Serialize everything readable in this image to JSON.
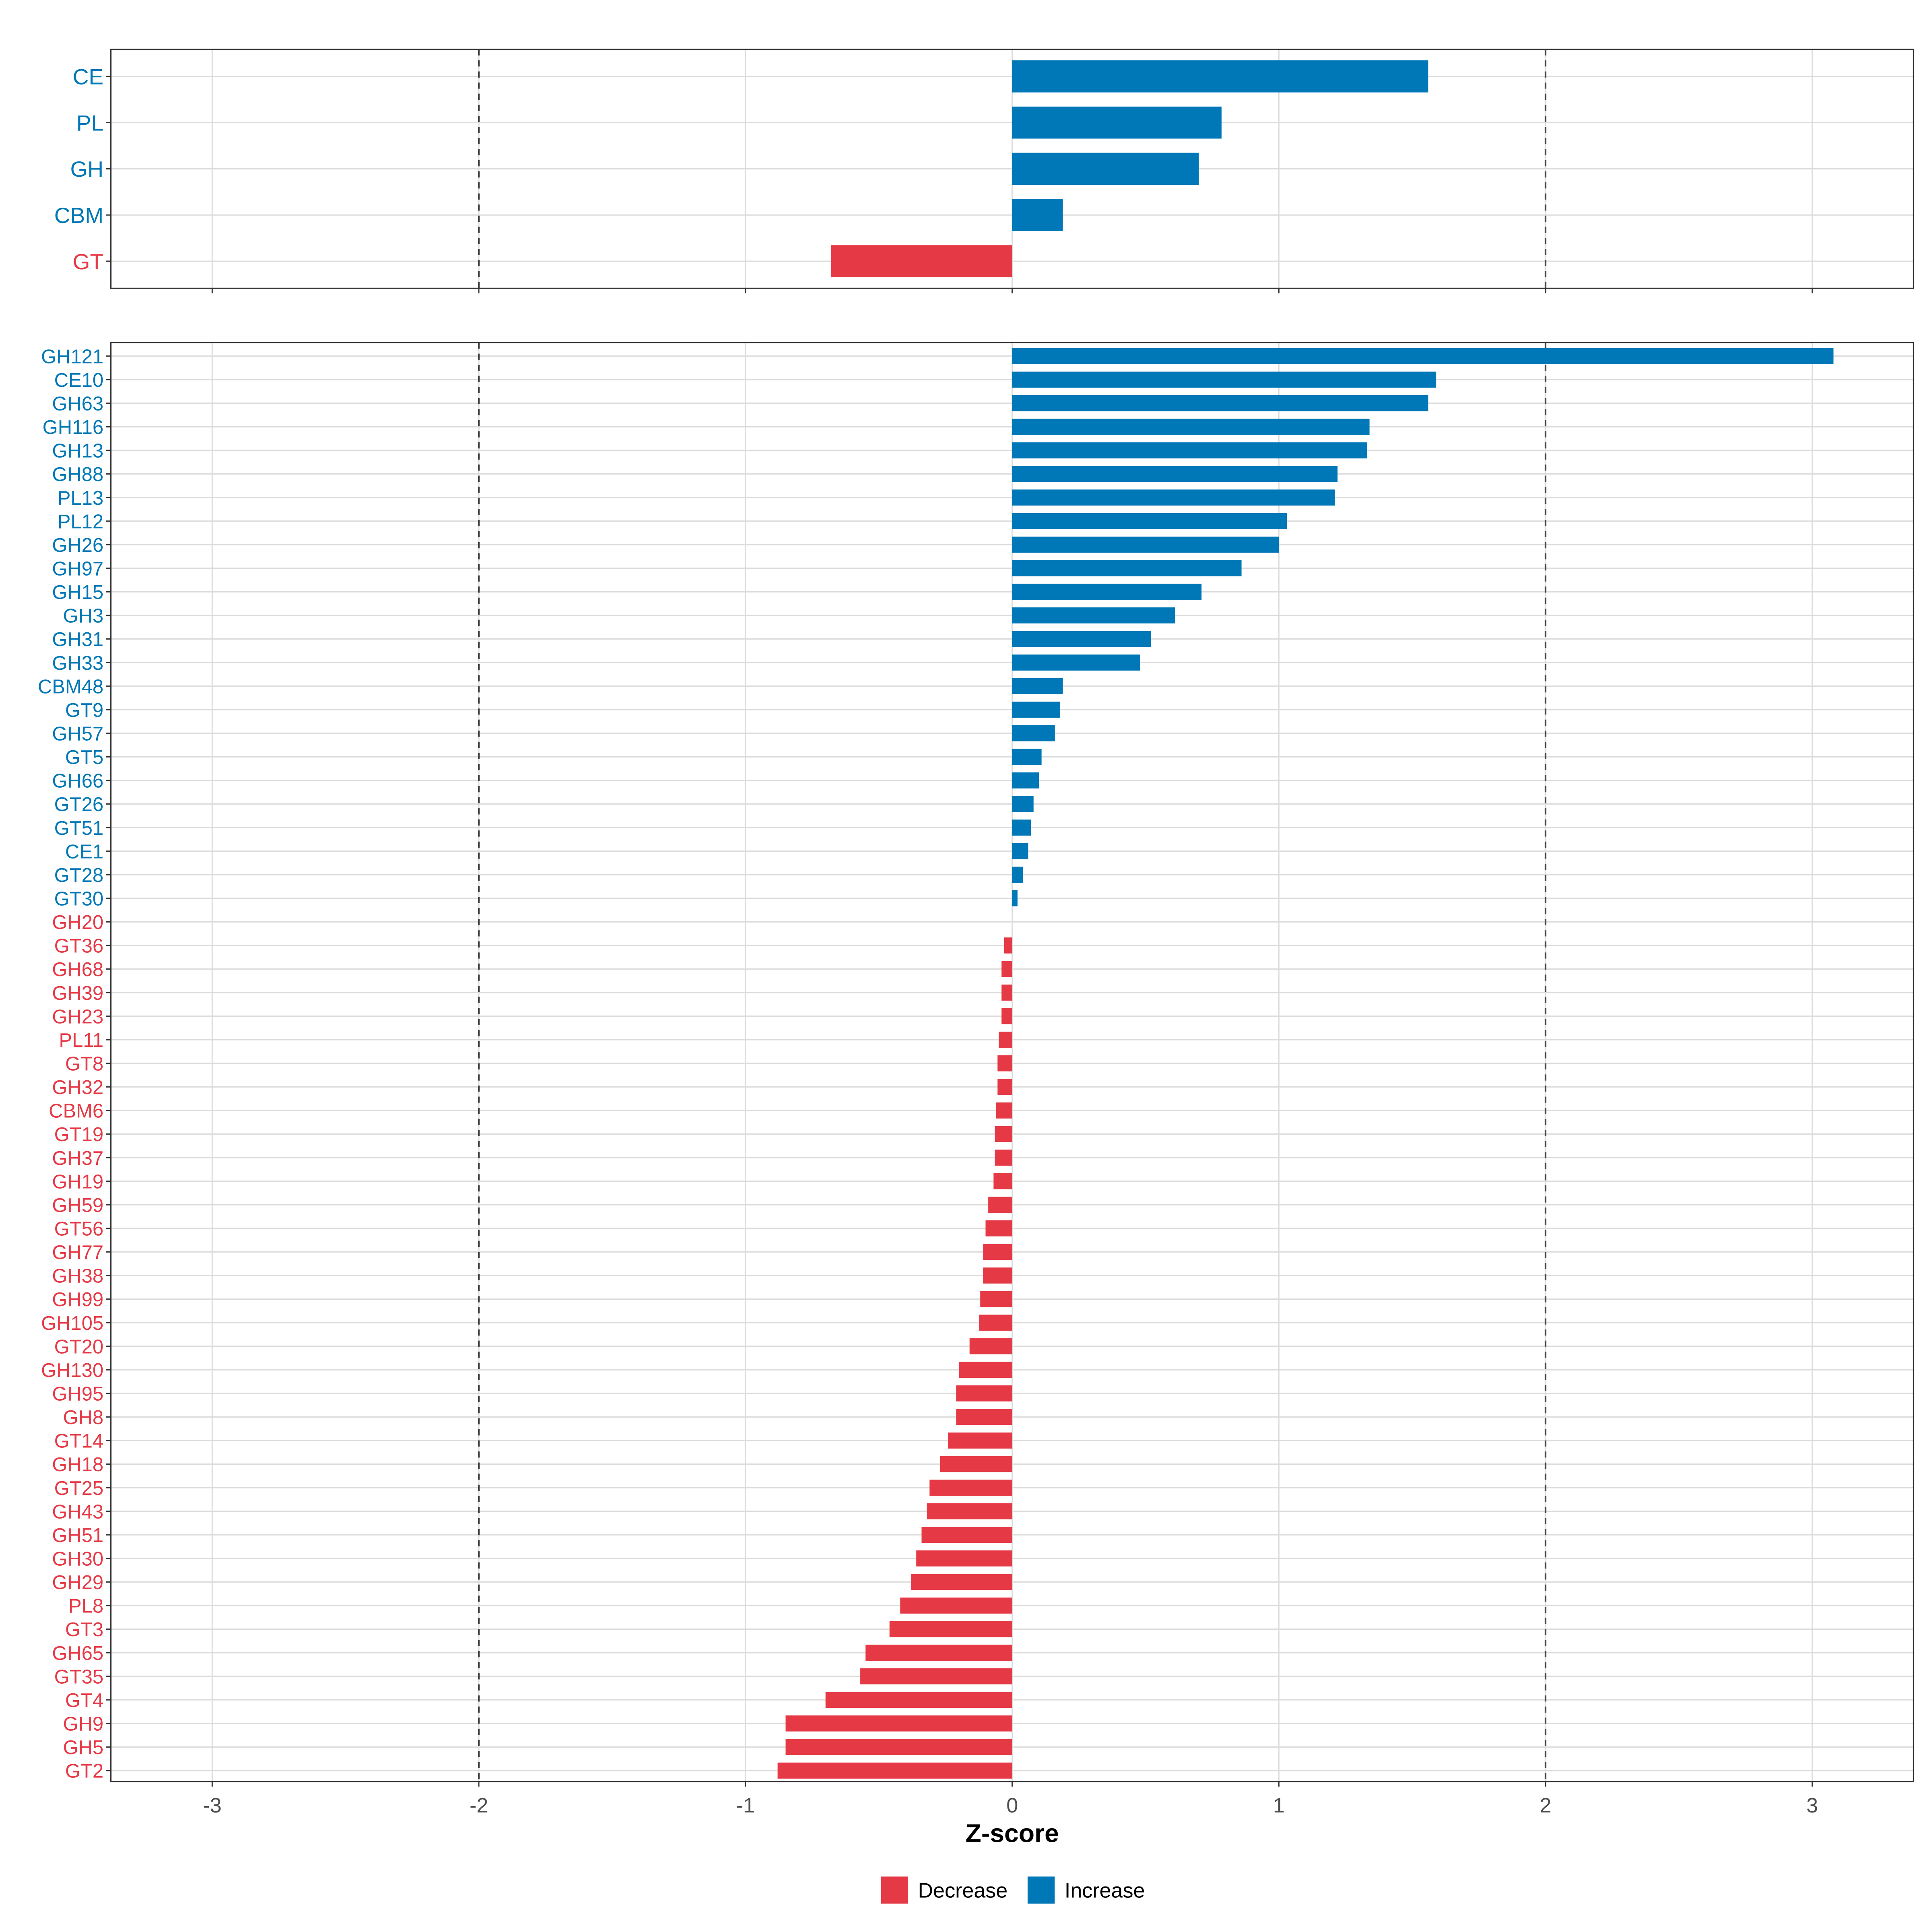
{
  "chart_data": [
    {
      "type": "bar",
      "orientation": "horizontal",
      "panel": "top",
      "categories": [
        "CE",
        "PL",
        "GH",
        "CBM",
        "GT"
      ],
      "values": [
        1.56,
        0.785,
        0.7,
        0.19,
        -0.68
      ],
      "xlim": [
        -3.38,
        3.38
      ],
      "xticks": [
        -3,
        -2,
        -1,
        0,
        1,
        2,
        3
      ],
      "reference_lines": [
        -2,
        2
      ],
      "grid": true
    },
    {
      "type": "bar",
      "orientation": "horizontal",
      "panel": "bottom",
      "categories": [
        "GH121",
        "CE10",
        "GH63",
        "GH116",
        "GH13",
        "GH88",
        "PL13",
        "PL12",
        "GH26",
        "GH97",
        "GH15",
        "GH3",
        "GH31",
        "GH33",
        "CBM48",
        "GT9",
        "GH57",
        "GT5",
        "GH66",
        "GT26",
        "GT51",
        "CE1",
        "GT28",
        "GT30",
        "GH20",
        "GT36",
        "GH68",
        "GH39",
        "GH23",
        "PL11",
        "GT8",
        "GH32",
        "CBM6",
        "GT19",
        "GH37",
        "GH19",
        "GH59",
        "GT56",
        "GH77",
        "GH38",
        "GH99",
        "GH105",
        "GT20",
        "GH130",
        "GH95",
        "GH8",
        "GT14",
        "GH18",
        "GT25",
        "GH43",
        "GH51",
        "GH30",
        "GH29",
        "PL8",
        "GT3",
        "GH65",
        "GT35",
        "GT4",
        "GH9",
        "GH5",
        "GT2"
      ],
      "values": [
        3.08,
        1.59,
        1.56,
        1.34,
        1.33,
        1.22,
        1.21,
        1.03,
        1.0,
        0.86,
        0.71,
        0.61,
        0.52,
        0.48,
        0.19,
        0.18,
        0.16,
        0.11,
        0.1,
        0.08,
        0.07,
        0.06,
        0.04,
        0.02,
        -0.001,
        -0.03,
        -0.04,
        -0.04,
        -0.04,
        -0.05,
        -0.055,
        -0.055,
        -0.06,
        -0.065,
        -0.065,
        -0.07,
        -0.09,
        -0.1,
        -0.11,
        -0.11,
        -0.12,
        -0.125,
        -0.16,
        -0.2,
        -0.21,
        -0.21,
        -0.24,
        -0.27,
        -0.31,
        -0.32,
        -0.34,
        -0.36,
        -0.38,
        -0.42,
        -0.46,
        -0.55,
        -0.57,
        -0.7,
        -0.85,
        -0.85,
        -0.88
      ],
      "xlim": [
        -3.38,
        3.38
      ],
      "xticks": [
        -3,
        -2,
        -1,
        0,
        1,
        2,
        3
      ],
      "xtick_labels": [
        "-3",
        "-2",
        "-1",
        "0",
        "1",
        "2",
        "3"
      ],
      "xlabel": "Z-score",
      "reference_lines": [
        -2,
        2
      ],
      "grid": true
    }
  ],
  "legend": {
    "placement": "bottom",
    "items": [
      {
        "label": "Decrease",
        "color": "#E63946"
      },
      {
        "label": "Increase",
        "color": "#0077B6"
      }
    ]
  }
}
